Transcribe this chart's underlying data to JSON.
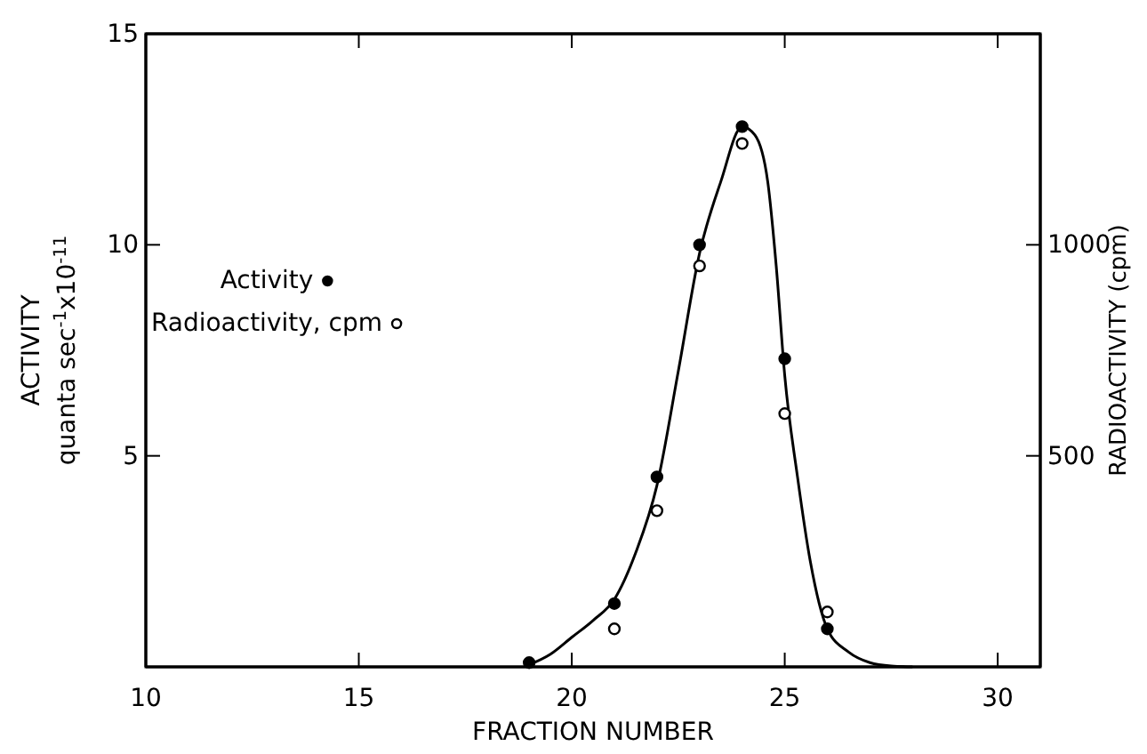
{
  "chart_data": {
    "type": "scatter",
    "xlabel": "FRACTION NUMBER",
    "ylabel": "ACTIVITY\nquanta sec$^{-1}$x10$^{-11}$",
    "y2label": "RADIOACTIVITY (cpm)",
    "xlim": [
      10,
      31
    ],
    "xticks": [
      10,
      15,
      20,
      25,
      30
    ],
    "ylim": [
      0,
      15
    ],
    "yticks": [
      5,
      10,
      15
    ],
    "y2lim": [
      0,
      1500
    ],
    "y2ticks": [
      500,
      1000
    ],
    "legend": "left",
    "marker": "circle",
    "series": [
      {
        "name": "Activity",
        "color": "#000000",
        "x": [
          19,
          21,
          22,
          23,
          24,
          25,
          26
        ],
        "values": [
          0.1,
          1.5,
          4.5,
          10.0,
          12.8,
          7.3,
          0.9
        ]
      },
      {
        "name": "Radioactivity, cpm",
        "color": "#000000",
        "axis": "y2",
        "x": [
          21,
          22,
          23,
          24,
          25,
          26
        ],
        "values": [
          90,
          370,
          950,
          1240,
          600,
          130
        ]
      },
      {
        "color": "#000000",
        "type": "line",
        "marker": "none",
        "line_style": "solid",
        "x": [
          19,
          19.5,
          20,
          20.5,
          21,
          21.5,
          22,
          22.5,
          23,
          23.5,
          24,
          24.3,
          24.6,
          24.8,
          25,
          25.3,
          25.6,
          26,
          26.5,
          27,
          27.5,
          28
        ],
        "values": [
          0.05,
          0.3,
          0.7,
          1.1,
          1.6,
          2.7,
          4.3,
          7,
          9.8,
          11.5,
          12.8,
          12.6,
          11.5,
          9.5,
          6.9,
          4.5,
          2.5,
          0.9,
          0.35,
          0.1,
          0.02,
          0
        ]
      }
    ]
  }
}
